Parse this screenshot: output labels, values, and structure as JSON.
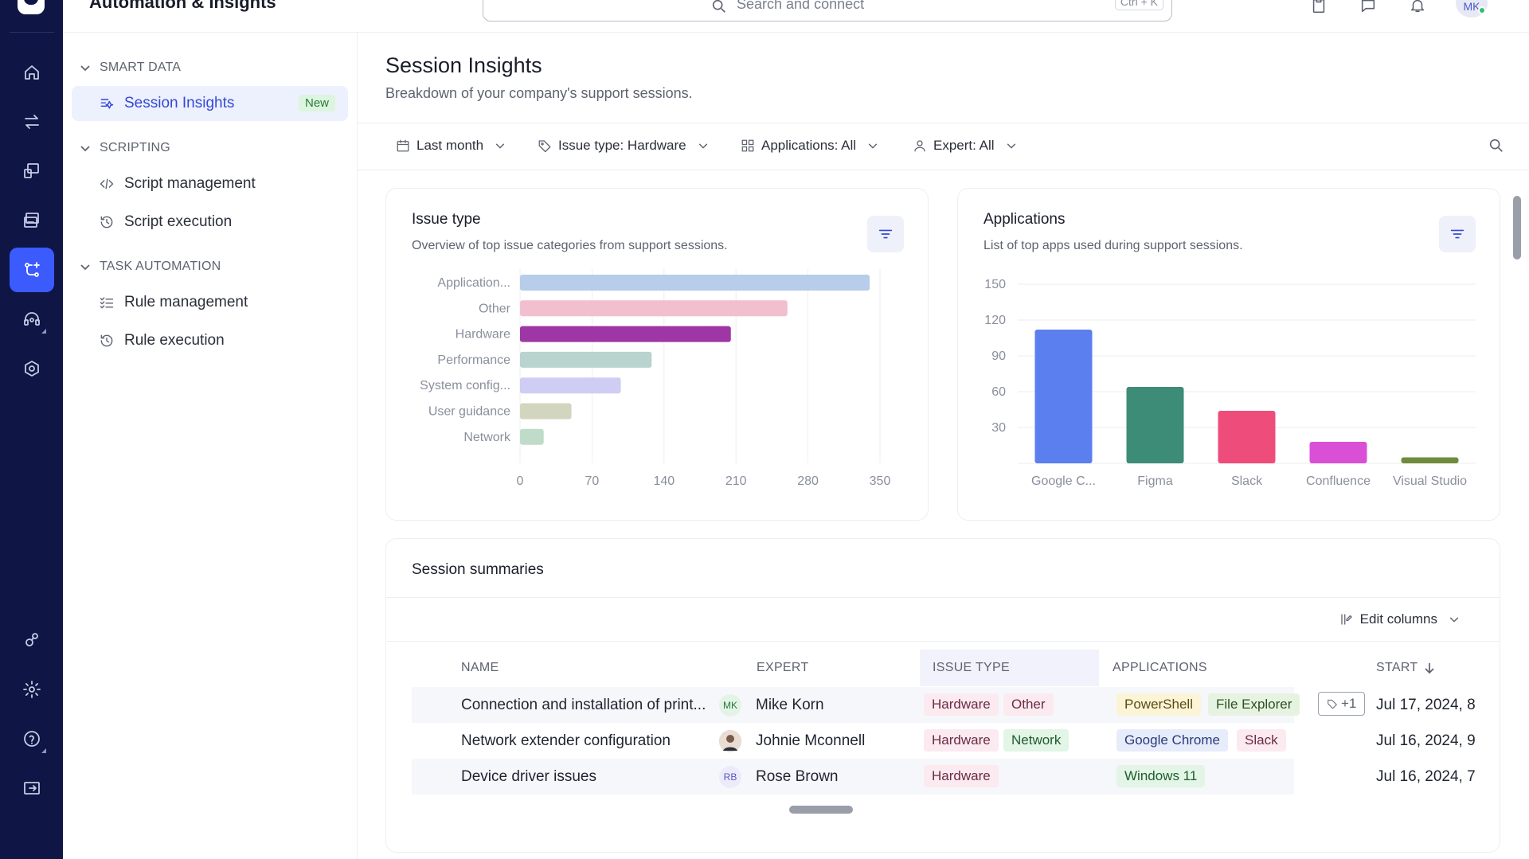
{
  "app": {
    "title": "Automation & Insights"
  },
  "search": {
    "placeholder": "Search and connect",
    "shortcut": "Ctrl + K"
  },
  "user": {
    "initials": "MK"
  },
  "rail": [
    "home-icon",
    "transfer-icon",
    "sessions-icon",
    "devices-icon",
    "automation-icon",
    "support-icon",
    "security-icon",
    "integrations-icon",
    "settings-icon",
    "help-icon",
    "exit-icon"
  ],
  "sidebar": {
    "sections": [
      {
        "label": "SMART DATA"
      },
      {
        "label": "SCRIPTING"
      },
      {
        "label": "TASK AUTOMATION"
      }
    ],
    "items": [
      {
        "label": "Session Insights",
        "badge": "New"
      },
      {
        "label": "Script management"
      },
      {
        "label": "Script execution"
      },
      {
        "label": "Rule management"
      },
      {
        "label": "Rule execution"
      }
    ]
  },
  "page": {
    "title": "Session Insights",
    "subtitle": "Breakdown of your company's support sessions."
  },
  "filters": {
    "date": "Last month",
    "issue_type": "Issue type: Hardware",
    "applications": "Applications: All",
    "expert": "Expert: All"
  },
  "issue_card": {
    "title": "Issue type",
    "subtitle": "Overview of top issue categories from support sessions."
  },
  "apps_card": {
    "title": "Applications",
    "subtitle": "List of top apps used during support sessions."
  },
  "chart_data": [
    {
      "type": "bar",
      "orientation": "horizontal",
      "categories": [
        "Application...",
        "Other",
        "Hardware",
        "Performance",
        "System config...",
        "User guidance",
        "Network"
      ],
      "values": [
        340,
        260,
        205,
        128,
        98,
        50,
        23
      ],
      "xticks": [
        "0",
        "70",
        "140",
        "210",
        "280",
        "350"
      ],
      "xlim": [
        0,
        350
      ],
      "colors": [
        "#b7cdea",
        "#f2bfce",
        "#9e36a6",
        "#b9d3cf",
        "#cfcdf3",
        "#d3d6be",
        "#bfdcc8"
      ]
    },
    {
      "type": "bar",
      "categories": [
        "Google C...",
        "Figma",
        "Slack",
        "Confluence",
        "Visual Studio"
      ],
      "values": [
        112,
        64,
        44,
        18,
        5
      ],
      "yticks": [
        "30",
        "60",
        "90",
        "120",
        "150"
      ],
      "ylim": [
        0,
        150
      ],
      "grid": true,
      "colors": [
        "#5b7fee",
        "#3d8c77",
        "#ee4d7b",
        "#d94fd6",
        "#6f8b3c"
      ]
    }
  ],
  "table": {
    "title": "Session summaries",
    "edit_columns": "Edit columns",
    "headers": {
      "name": "NAME",
      "expert": "EXPERT",
      "issue_type": "ISSUE TYPE",
      "applications": "APPLICATIONS",
      "start": "START"
    },
    "rows": [
      {
        "name": "Connection and installation of print...",
        "expert": "Mike Korn",
        "expert_initials": "MK",
        "issues": [
          "Hardware",
          "Other"
        ],
        "apps": [
          "PowerShell",
          "File Explorer"
        ],
        "more": "+1",
        "start": "Jul 17, 2024, 8"
      },
      {
        "name": "Network extender configuration",
        "expert": "Johnie Mconnell",
        "expert_initials": "",
        "issues": [
          "Hardware",
          "Network"
        ],
        "apps": [
          "Google Chrome",
          "Slack"
        ],
        "start": "Jul 16, 2024, 9"
      },
      {
        "name": "Device driver issues",
        "expert": "Rose Brown",
        "expert_initials": "RB",
        "issues": [
          "Hardware"
        ],
        "apps": [
          "Windows 11"
        ],
        "start": "Jul 16, 2024, 7"
      }
    ]
  }
}
